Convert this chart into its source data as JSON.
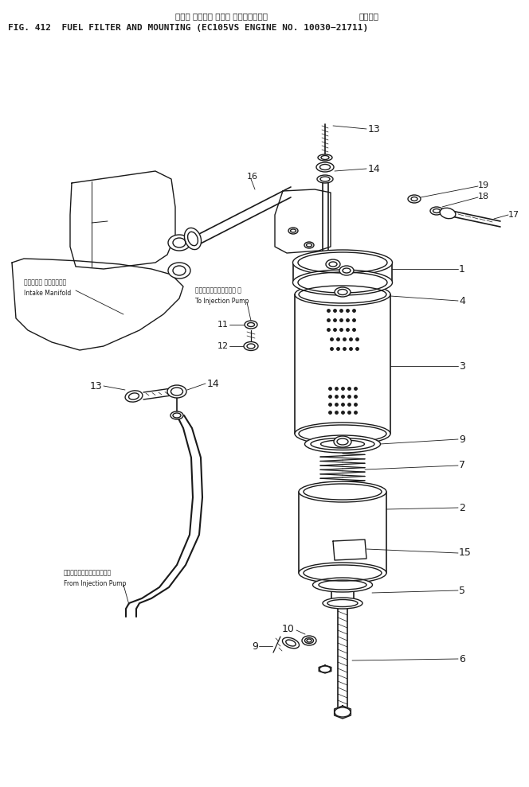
{
  "title_jp": "フェル フィルタ および マウンティング",
  "title_jp2": "通用号機",
  "title_en": "FIG. 412  FUEL FILTER AND MOUNTING (EC105VS ENGINE NO. 10030−21711)",
  "bg_color": "#ffffff",
  "line_color": "#1a1a1a",
  "label_intake_jp": "インテーク マニホールド",
  "label_intake_en": "Intake Manifold",
  "label_to_pump_jp": "インジェクションポンプ へ",
  "label_to_pump_en": "To Injection Pump",
  "label_from_pump_jp": "インジェクションポンプより",
  "label_from_pump_en": "From Injection Pump"
}
